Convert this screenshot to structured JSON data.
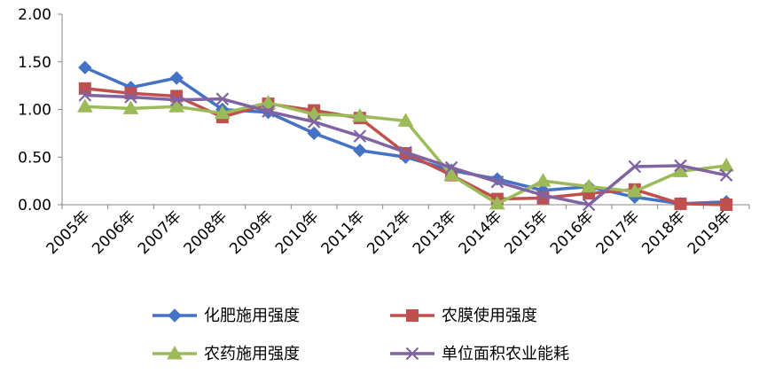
{
  "chart_data": {
    "type": "line",
    "categories": [
      "2005年",
      "2006年",
      "2007年",
      "2008年",
      "2009年",
      "2010年",
      "2011年",
      "2012年",
      "2013年",
      "2014年",
      "2015年",
      "2016年",
      "2017年",
      "2018年",
      "2019年"
    ],
    "y_ticks": [
      "0.00",
      "0.50",
      "1.00",
      "1.50",
      "2.00"
    ],
    "ylim": [
      0,
      2
    ],
    "grid": false,
    "legend_position": "bottom",
    "series": [
      {
        "name": "化肥施用强度",
        "color": "#4472C4",
        "marker": "diamond",
        "values": [
          1.44,
          1.23,
          1.33,
          1.0,
          0.97,
          0.75,
          0.57,
          0.5,
          0.36,
          0.27,
          0.15,
          0.19,
          0.08,
          0.01,
          0.03
        ]
      },
      {
        "name": "农膜使用强度",
        "color": "#C0504D",
        "marker": "square",
        "values": [
          1.22,
          1.17,
          1.14,
          0.92,
          1.06,
          0.99,
          0.91,
          0.54,
          0.31,
          0.06,
          0.07,
          0.12,
          0.16,
          0.01,
          0.0
        ]
      },
      {
        "name": "农药施用强度",
        "color": "#9BBB59",
        "marker": "triangle",
        "values": [
          1.03,
          1.01,
          1.03,
          0.96,
          1.07,
          0.95,
          0.93,
          0.88,
          0.31,
          0.01,
          0.25,
          0.19,
          0.14,
          0.35,
          0.41
        ]
      },
      {
        "name": "单位面积农业能耗",
        "color": "#8064A2",
        "marker": "x",
        "values": [
          1.15,
          1.13,
          1.1,
          1.11,
          0.98,
          0.87,
          0.72,
          0.55,
          0.39,
          0.24,
          0.1,
          0.0,
          0.4,
          0.41,
          0.31
        ]
      }
    ]
  }
}
